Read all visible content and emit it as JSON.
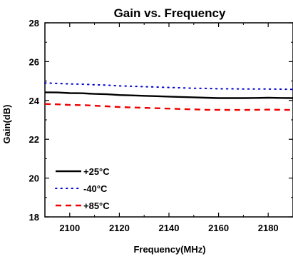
{
  "chart_data": {
    "type": "line",
    "title": "Gain vs. Frequency",
    "xlabel": "Frequency(MHz)",
    "ylabel": "Gain(dB)",
    "xlim": [
      2090,
      2190
    ],
    "ylim": [
      18,
      28
    ],
    "x_ticks": [
      2100,
      2120,
      2140,
      2160,
      2180
    ],
    "y_ticks": [
      18,
      20,
      22,
      24,
      26,
      28
    ],
    "grid": false,
    "legend_position": "bottom-left",
    "series": [
      {
        "name": "+25°C",
        "color": "#000000",
        "style": "solid",
        "x": [
          2090,
          2095,
          2100,
          2105,
          2110,
          2115,
          2120,
          2125,
          2130,
          2135,
          2140,
          2145,
          2150,
          2155,
          2160,
          2165,
          2170,
          2175,
          2180,
          2185,
          2190
        ],
        "y": [
          24.42,
          24.41,
          24.38,
          24.37,
          24.34,
          24.32,
          24.28,
          24.26,
          24.24,
          24.22,
          24.2,
          24.18,
          24.16,
          24.14,
          24.12,
          24.12,
          24.12,
          24.13,
          24.14,
          24.13,
          24.12
        ]
      },
      {
        "name": "-40°C",
        "color": "#0000cc",
        "style": "dotted",
        "x": [
          2090,
          2095,
          2100,
          2105,
          2110,
          2115,
          2120,
          2125,
          2130,
          2135,
          2140,
          2145,
          2150,
          2155,
          2160,
          2165,
          2170,
          2175,
          2180,
          2185,
          2190
        ],
        "y": [
          24.9,
          24.88,
          24.85,
          24.84,
          24.81,
          24.79,
          24.75,
          24.73,
          24.71,
          24.69,
          24.67,
          24.65,
          24.63,
          24.62,
          24.6,
          24.6,
          24.59,
          24.59,
          24.59,
          24.58,
          24.57
        ]
      },
      {
        "name": "+85°C",
        "color": "#ee0000",
        "style": "dashed",
        "x": [
          2090,
          2095,
          2100,
          2105,
          2110,
          2115,
          2120,
          2125,
          2130,
          2135,
          2140,
          2145,
          2150,
          2155,
          2160,
          2165,
          2170,
          2175,
          2180,
          2185,
          2190
        ],
        "y": [
          23.82,
          23.8,
          23.77,
          23.76,
          23.73,
          23.7,
          23.66,
          23.64,
          23.62,
          23.6,
          23.58,
          23.56,
          23.54,
          23.52,
          23.52,
          23.51,
          23.51,
          23.52,
          23.53,
          23.52,
          23.51
        ]
      }
    ]
  }
}
